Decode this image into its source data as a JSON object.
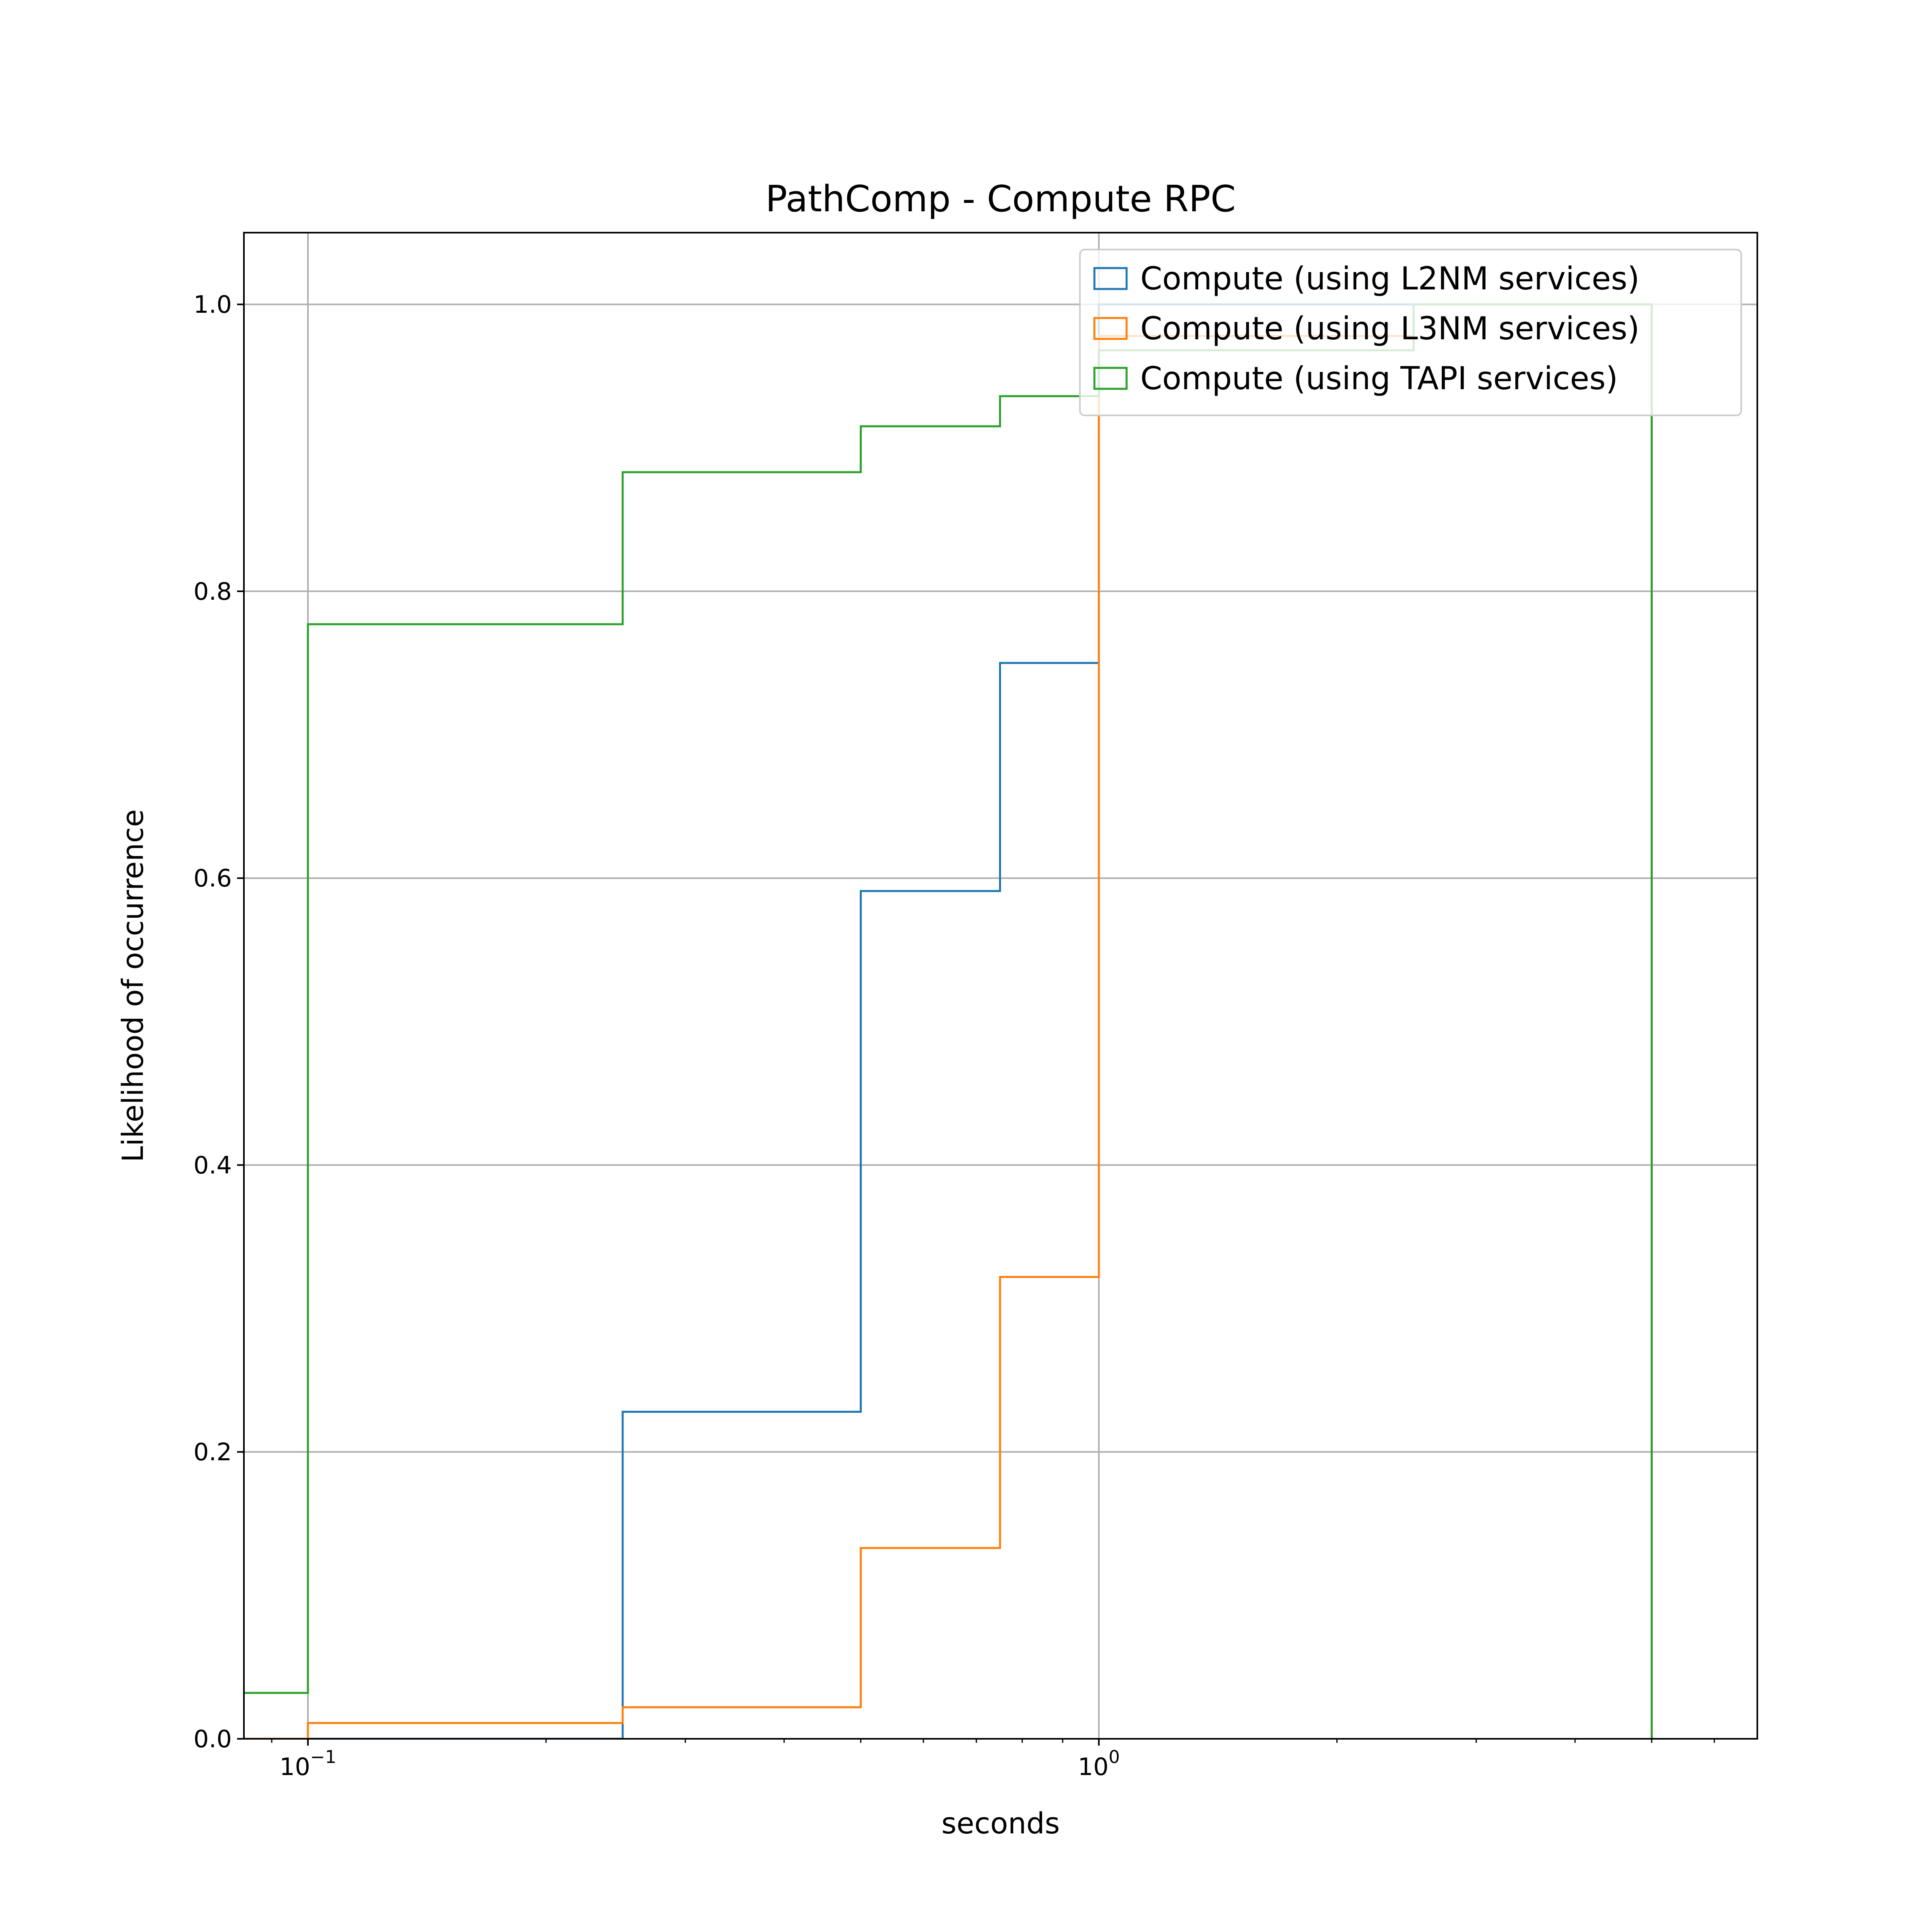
{
  "chart_data": {
    "type": "line",
    "title": "PathComp - Compute RPC",
    "xlabel": "seconds",
    "ylabel": "Likelihood of occurrence",
    "xscale": "log",
    "xlim": [
      0.083,
      6.8
    ],
    "ylim": [
      0,
      1.05
    ],
    "grid": true,
    "legend_position": "top-right",
    "x_major_ticks": [
      {
        "value": 0.1,
        "base": "10",
        "exp": "−1"
      },
      {
        "value": 1,
        "base": "10",
        "exp": "0"
      }
    ],
    "y_ticks": [
      {
        "value": 0.0,
        "label": "0.0"
      },
      {
        "value": 0.2,
        "label": "0.2"
      },
      {
        "value": 0.4,
        "label": "0.4"
      },
      {
        "value": 0.6,
        "label": "0.6"
      },
      {
        "value": 0.8,
        "label": "0.8"
      },
      {
        "value": 1.0,
        "label": "1.0"
      }
    ],
    "bin_edges": [
      0,
      0.1,
      0.25,
      0.5,
      0.75,
      1.0,
      2.5,
      5.0
    ],
    "series": [
      {
        "name": "Compute (using L2NM services)",
        "color": "#1f77b4",
        "values": [
          0.0,
          0.0,
          0.228,
          0.591,
          0.75,
          1.0,
          1.0
        ]
      },
      {
        "name": "Compute (using L3NM services)",
        "color": "#ff7f0e",
        "values": [
          0.0,
          0.011,
          0.022,
          0.133,
          0.322,
          0.978,
          1.0
        ]
      },
      {
        "name": "Compute (using TAPI services)",
        "color": "#2ca02c",
        "values": [
          0.032,
          0.777,
          0.883,
          0.915,
          0.936,
          0.968,
          1.0
        ]
      }
    ]
  }
}
